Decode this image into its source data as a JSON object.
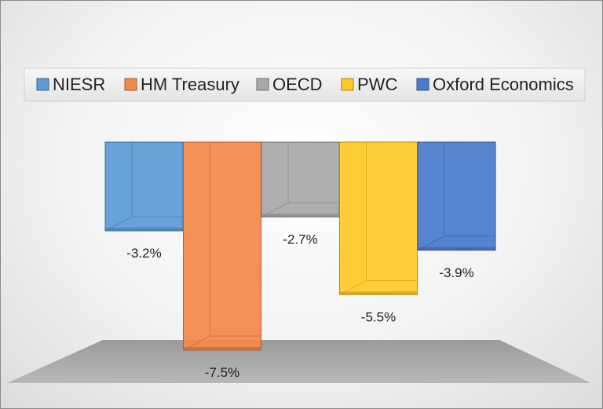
{
  "chart_data": {
    "type": "bar",
    "style": "3d-column",
    "categories": [
      "NIESR",
      "HM Treasury",
      "OECD",
      "PWC",
      "Oxford Economics"
    ],
    "values": [
      -3.2,
      -7.5,
      -2.7,
      -5.5,
      -3.9
    ],
    "data_labels": [
      "-3.2%",
      "-7.5%",
      "-2.7%",
      "-5.5%",
      "-3.9%"
    ],
    "colors": [
      "#5b9bd5",
      "#f4884a",
      "#a9a9a9",
      "#ffc928",
      "#4a7bcc"
    ],
    "ylim": [
      -7.5,
      0
    ],
    "legend_position": "top",
    "grid": false
  }
}
